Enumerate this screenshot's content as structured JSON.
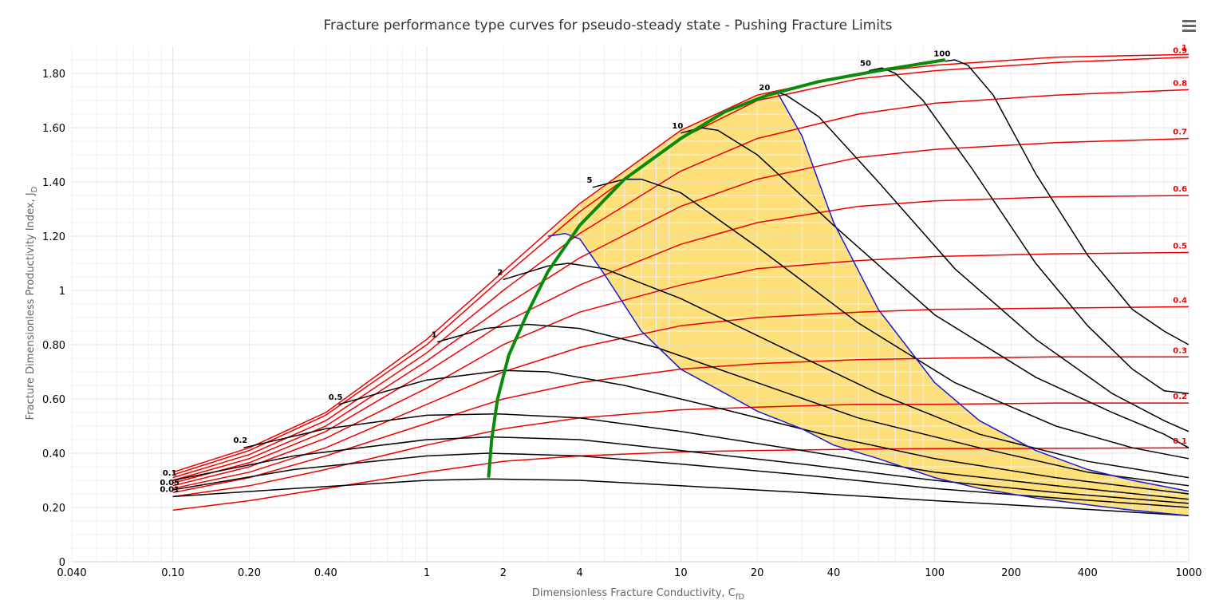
{
  "chart": {
    "title": "Fracture performance type curves for pseudo-steady state - Pushing Fracture Limits",
    "xlabel_main": "Dimensionless Fracture Conductivity, C",
    "xlabel_sub": "fD",
    "ylabel_main": "Fracture Dimensionless Productivity Index, J",
    "ylabel_sub": "D",
    "menu_icon": "hamburger-menu-icon"
  },
  "chart_data": {
    "type": "line",
    "x_scale": "log",
    "xlim": [
      0.04,
      1000
    ],
    "ylim": [
      0,
      1.9
    ],
    "grid": true,
    "legend": "none",
    "x_ticks": [
      {
        "value": 0.04,
        "label": "0.040"
      },
      {
        "value": 0.1,
        "label": "0.10"
      },
      {
        "value": 0.2,
        "label": "0.20"
      },
      {
        "value": 0.4,
        "label": "0.40"
      },
      {
        "value": 1,
        "label": "1"
      },
      {
        "value": 2,
        "label": "2"
      },
      {
        "value": 4,
        "label": "4"
      },
      {
        "value": 10,
        "label": "10"
      },
      {
        "value": 20,
        "label": "20"
      },
      {
        "value": 40,
        "label": "40"
      },
      {
        "value": 100,
        "label": "100"
      },
      {
        "value": 200,
        "label": "200"
      },
      {
        "value": 400,
        "label": "400"
      },
      {
        "value": 1000,
        "label": "1000"
      }
    ],
    "y_ticks": [
      {
        "value": 0,
        "label": "0"
      },
      {
        "value": 0.2,
        "label": "0.20"
      },
      {
        "value": 0.4,
        "label": "0.40"
      },
      {
        "value": 0.6,
        "label": "0.60"
      },
      {
        "value": 0.8,
        "label": "0.80"
      },
      {
        "value": 1,
        "label": "1"
      },
      {
        "value": 1.2,
        "label": "1.20"
      },
      {
        "value": 1.4,
        "label": "1.40"
      },
      {
        "value": 1.6,
        "label": "1.60"
      },
      {
        "value": 1.8,
        "label": "1.80"
      }
    ],
    "colors": {
      "penetration": "#ee0000",
      "proppant": "#000000",
      "limit": "#1a1ad6",
      "optimum": "#0a8a0a",
      "fill": "#fde07a"
    },
    "penetration_curves": [
      {
        "label": "1",
        "x": [
          0.1,
          0.2,
          0.4,
          1,
          2,
          4,
          10,
          20,
          50,
          100,
          300,
          1000
        ],
        "y": [
          0.33,
          0.42,
          0.55,
          0.82,
          1.07,
          1.32,
          1.59,
          1.72,
          1.8,
          1.83,
          1.86,
          1.87
        ]
      },
      {
        "label": "0.9",
        "x": [
          0.1,
          0.2,
          0.4,
          1,
          2,
          4,
          10,
          20,
          50,
          100,
          300,
          1000
        ],
        "y": [
          0.32,
          0.41,
          0.54,
          0.8,
          1.05,
          1.29,
          1.56,
          1.7,
          1.78,
          1.81,
          1.84,
          1.86
        ]
      },
      {
        "label": "0.8",
        "x": [
          0.1,
          0.2,
          0.4,
          1,
          2,
          4,
          10,
          20,
          50,
          100,
          300,
          1000
        ],
        "y": [
          0.31,
          0.395,
          0.52,
          0.77,
          1.0,
          1.21,
          1.44,
          1.56,
          1.65,
          1.69,
          1.72,
          1.74
        ]
      },
      {
        "label": "0.7",
        "x": [
          0.1,
          0.2,
          0.4,
          1,
          2,
          4,
          10,
          20,
          50,
          100,
          300,
          1000
        ],
        "y": [
          0.3,
          0.38,
          0.5,
          0.74,
          0.94,
          1.12,
          1.31,
          1.41,
          1.49,
          1.52,
          1.545,
          1.56
        ]
      },
      {
        "label": "0.6",
        "x": [
          0.1,
          0.2,
          0.4,
          1,
          2,
          4,
          10,
          20,
          50,
          100,
          300,
          1000
        ],
        "y": [
          0.29,
          0.365,
          0.48,
          0.7,
          0.88,
          1.02,
          1.17,
          1.25,
          1.31,
          1.33,
          1.345,
          1.35
        ]
      },
      {
        "label": "0.5",
        "x": [
          0.1,
          0.2,
          0.4,
          1,
          2,
          4,
          10,
          20,
          50,
          100,
          300,
          1000
        ],
        "y": [
          0.28,
          0.35,
          0.455,
          0.64,
          0.8,
          0.92,
          1.02,
          1.08,
          1.11,
          1.125,
          1.135,
          1.14
        ]
      },
      {
        "label": "0.4",
        "x": [
          0.1,
          0.2,
          0.4,
          1,
          2,
          4,
          10,
          20,
          50,
          100,
          300,
          1000
        ],
        "y": [
          0.27,
          0.33,
          0.42,
          0.58,
          0.7,
          0.79,
          0.87,
          0.9,
          0.92,
          0.93,
          0.935,
          0.94
        ]
      },
      {
        "label": "0.3",
        "x": [
          0.1,
          0.2,
          0.4,
          1,
          2,
          4,
          10,
          20,
          50,
          100,
          300,
          1000
        ],
        "y": [
          0.255,
          0.31,
          0.39,
          0.51,
          0.6,
          0.66,
          0.71,
          0.73,
          0.745,
          0.75,
          0.755,
          0.755
        ]
      },
      {
        "label": "0.2",
        "x": [
          0.1,
          0.2,
          0.4,
          1,
          2,
          4,
          10,
          20,
          50,
          100,
          300,
          1000
        ],
        "y": [
          0.24,
          0.28,
          0.34,
          0.43,
          0.49,
          0.53,
          0.56,
          0.57,
          0.58,
          0.58,
          0.585,
          0.585
        ]
      },
      {
        "label": "0.1",
        "x": [
          0.1,
          0.2,
          0.4,
          1,
          2,
          4,
          10,
          20,
          50,
          100,
          300,
          1000
        ],
        "y": [
          0.19,
          0.225,
          0.27,
          0.33,
          0.37,
          0.39,
          0.405,
          0.41,
          0.415,
          0.417,
          0.418,
          0.42
        ]
      }
    ],
    "proppant_curves": [
      {
        "label": "0.01",
        "x": [
          0.1,
          0.3,
          1,
          1.75,
          4,
          10,
          30,
          100,
          300,
          1000
        ],
        "y": [
          0.24,
          0.27,
          0.3,
          0.305,
          0.3,
          0.28,
          0.255,
          0.225,
          0.2,
          0.17
        ]
      },
      {
        "label": "0.05",
        "x": [
          0.1,
          0.3,
          1,
          1.75,
          4,
          10,
          30,
          100,
          300,
          1000
        ],
        "y": [
          0.265,
          0.34,
          0.39,
          0.4,
          0.39,
          0.36,
          0.32,
          0.27,
          0.235,
          0.2
        ]
      },
      {
        "label": "0.1",
        "x": [
          0.1,
          0.3,
          1,
          1.8,
          4,
          10,
          30,
          100,
          300,
          1000
        ],
        "y": [
          0.3,
          0.39,
          0.45,
          0.46,
          0.45,
          0.41,
          0.36,
          0.3,
          0.255,
          0.215
        ]
      },
      {
        "label": "0.2",
        "x": [
          0.19,
          0.4,
          1,
          1.9,
          4,
          10,
          30,
          100,
          300,
          1000
        ],
        "y": [
          0.42,
          0.49,
          0.54,
          0.545,
          0.53,
          0.48,
          0.41,
          0.33,
          0.28,
          0.23
        ]
      },
      {
        "label": "0.5",
        "x": [
          0.45,
          1,
          2,
          3,
          6,
          15,
          40,
          100,
          300,
          1000
        ],
        "y": [
          0.58,
          0.67,
          0.705,
          0.7,
          0.65,
          0.56,
          0.46,
          0.38,
          0.31,
          0.25
        ]
      },
      {
        "label": "1",
        "x": [
          1.1,
          1.7,
          2.5,
          4,
          8,
          20,
          50,
          150,
          400,
          1000
        ],
        "y": [
          0.81,
          0.86,
          0.875,
          0.86,
          0.79,
          0.66,
          0.53,
          0.42,
          0.33,
          0.28
        ]
      },
      {
        "label": "2",
        "x": [
          2,
          3,
          3.6,
          5,
          10,
          25,
          60,
          150,
          400,
          1000
        ],
        "y": [
          1.04,
          1.09,
          1.1,
          1.08,
          0.97,
          0.79,
          0.62,
          0.47,
          0.37,
          0.31
        ]
      },
      {
        "label": "5",
        "x": [
          4.5,
          6,
          7,
          10,
          20,
          50,
          120,
          300,
          600,
          1000
        ],
        "y": [
          1.38,
          1.41,
          1.41,
          1.36,
          1.16,
          0.88,
          0.66,
          0.5,
          0.42,
          0.38
        ]
      },
      {
        "label": "10",
        "x": [
          10,
          12,
          14,
          20,
          40,
          100,
          250,
          500,
          800,
          1000
        ],
        "y": [
          1.58,
          1.6,
          1.59,
          1.5,
          1.24,
          0.91,
          0.68,
          0.55,
          0.47,
          0.42
        ]
      },
      {
        "label": "20",
        "x": [
          22,
          24,
          26,
          35,
          60,
          120,
          250,
          500,
          800,
          1000
        ],
        "y": [
          1.72,
          1.73,
          1.72,
          1.64,
          1.4,
          1.08,
          0.82,
          0.62,
          0.52,
          0.48
        ]
      },
      {
        "label": "50",
        "x": [
          55,
          62,
          70,
          90,
          140,
          250,
          400,
          600,
          800,
          1000
        ],
        "y": [
          1.81,
          1.82,
          1.8,
          1.7,
          1.45,
          1.1,
          0.87,
          0.71,
          0.63,
          0.62
        ]
      },
      {
        "label": "100",
        "x": [
          110,
          120,
          135,
          170,
          250,
          400,
          600,
          800,
          1000
        ],
        "y": [
          1.845,
          1.85,
          1.83,
          1.72,
          1.43,
          1.13,
          0.93,
          0.85,
          0.8
        ]
      }
    ],
    "limit_curve": {
      "x": [
        3.0,
        3.5,
        4,
        5,
        7,
        10,
        15,
        20,
        30,
        40,
        60,
        100,
        150,
        250,
        400,
        600,
        1000
      ],
      "y": [
        1.2,
        1.21,
        1.19,
        1.06,
        0.85,
        0.71,
        0.62,
        0.555,
        0.49,
        0.43,
        0.38,
        0.31,
        0.27,
        0.235,
        0.21,
        0.19,
        0.17
      ],
      "upper_x": [
        24,
        30,
        40,
        60,
        100,
        150,
        250,
        400,
        600,
        1000
      ],
      "upper_y": [
        1.73,
        1.57,
        1.25,
        0.93,
        0.66,
        0.52,
        0.41,
        0.34,
        0.3,
        0.26
      ]
    },
    "optimum_curve": {
      "x": [
        1.75,
        1.8,
        1.9,
        2.1,
        2.5,
        3,
        4,
        6,
        10,
        15,
        22,
        35,
        60,
        110
      ],
      "y": [
        0.31,
        0.45,
        0.6,
        0.76,
        0.92,
        1.07,
        1.24,
        1.41,
        1.56,
        1.66,
        1.72,
        1.77,
        1.81,
        1.85
      ]
    }
  }
}
